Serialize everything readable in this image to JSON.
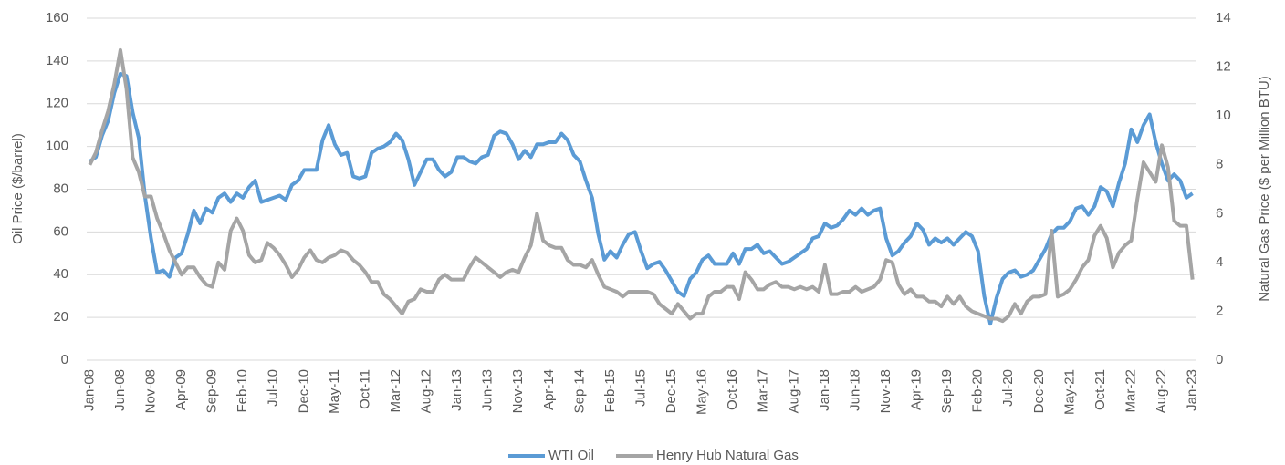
{
  "chart_data": {
    "type": "line",
    "y_label": "Oil Price ($/barrel)",
    "y2_label": "Natural Gas Price ($ per Million BTU)",
    "ylim": [
      0,
      160
    ],
    "yticks": [
      0,
      20,
      40,
      60,
      80,
      100,
      120,
      140,
      160
    ],
    "y2lim": [
      0,
      14
    ],
    "y2ticks": [
      0,
      2,
      4,
      6,
      8,
      10,
      12,
      14
    ],
    "grid": true,
    "legend": "bottom",
    "categories": [
      "Jan-08",
      null,
      null,
      null,
      null,
      "Jun-08",
      null,
      null,
      null,
      null,
      "Nov-08",
      null,
      null,
      null,
      null,
      "Apr-09",
      null,
      null,
      null,
      null,
      "Sep-09",
      null,
      null,
      null,
      null,
      "Feb-10",
      null,
      null,
      null,
      null,
      "Jul-10",
      null,
      null,
      null,
      null,
      "Dec-10",
      null,
      null,
      null,
      null,
      "May-11",
      null,
      null,
      null,
      null,
      "Oct-11",
      null,
      null,
      null,
      null,
      "Mar-12",
      null,
      null,
      null,
      null,
      "Aug-12",
      null,
      null,
      null,
      null,
      "Jan-13",
      null,
      null,
      null,
      null,
      "Jun-13",
      null,
      null,
      null,
      null,
      "Nov-13",
      null,
      null,
      null,
      null,
      "Apr-14",
      null,
      null,
      null,
      null,
      "Sep-14",
      null,
      null,
      null,
      null,
      "Feb-15",
      null,
      null,
      null,
      null,
      "Jul-15",
      null,
      null,
      null,
      null,
      "Dec-15",
      null,
      null,
      null,
      null,
      "May-16",
      null,
      null,
      null,
      null,
      "Oct-16",
      null,
      null,
      null,
      null,
      "Mar-17",
      null,
      null,
      null,
      null,
      "Aug-17",
      null,
      null,
      null,
      null,
      "Jan-18",
      null,
      null,
      null,
      null,
      "Jun-18",
      null,
      null,
      null,
      null,
      "Nov-18",
      null,
      null,
      null,
      null,
      "Apr-19",
      null,
      null,
      null,
      null,
      "Sep-19",
      null,
      null,
      null,
      null,
      "Feb-20",
      null,
      null,
      null,
      null,
      "Jul-20",
      null,
      null,
      null,
      null,
      "Dec-20",
      null,
      null,
      null,
      null,
      "May-21",
      null,
      null,
      null,
      null,
      "Oct-21",
      null,
      null,
      null,
      null,
      "Mar-22",
      null,
      null,
      null,
      null,
      "Aug-22",
      null,
      null,
      null,
      null,
      "Jan-23"
    ],
    "series": [
      {
        "name": "WTI Oil",
        "color": "#5b9bd5",
        "axis": "y",
        "values": [
          93,
          95,
          105,
          112,
          125,
          134,
          133,
          116,
          104,
          77,
          57,
          41,
          42,
          39,
          48,
          50,
          59,
          70,
          64,
          71,
          69,
          76,
          78,
          74,
          78,
          76,
          81,
          84,
          74,
          75,
          76,
          77,
          75,
          82,
          84,
          89,
          89,
          89,
          103,
          110,
          101,
          96,
          97,
          86,
          85,
          86,
          97,
          99,
          100,
          102,
          106,
          103,
          94,
          82,
          88,
          94,
          94,
          89,
          86,
          88,
          95,
          95,
          93,
          92,
          95,
          96,
          105,
          107,
          106,
          101,
          94,
          98,
          95,
          101,
          101,
          102,
          102,
          106,
          103,
          96,
          93,
          84,
          76,
          59,
          47,
          51,
          48,
          54,
          59,
          60,
          51,
          43,
          45,
          46,
          42,
          37,
          32,
          30,
          38,
          41,
          47,
          49,
          45,
          45,
          45,
          50,
          45,
          52,
          52,
          54,
          50,
          51,
          48,
          45,
          46,
          48,
          50,
          52,
          57,
          58,
          64,
          62,
          63,
          66,
          70,
          68,
          71,
          68,
          70,
          71,
          57,
          49,
          51,
          55,
          58,
          64,
          61,
          54,
          57,
          55,
          57,
          54,
          57,
          60,
          58,
          51,
          30,
          17,
          29,
          38,
          41,
          42,
          39,
          40,
          42,
          47,
          52,
          59,
          62,
          62,
          65,
          71,
          72,
          68,
          72,
          81,
          79,
          72,
          83,
          92,
          108,
          102,
          110,
          115,
          102,
          92,
          84,
          87,
          84,
          76,
          78
        ]
      },
      {
        "name": "Henry Hub Natural Gas",
        "color": "#a5a5a5",
        "axis": "y2",
        "values": [
          8.0,
          8.5,
          9.4,
          10.2,
          11.3,
          12.7,
          11.1,
          8.3,
          7.7,
          6.7,
          6.7,
          5.8,
          5.2,
          4.5,
          4.0,
          3.5,
          3.8,
          3.8,
          3.4,
          3.1,
          3.0,
          4.0,
          3.7,
          5.3,
          5.8,
          5.3,
          4.3,
          4.0,
          4.1,
          4.8,
          4.6,
          4.3,
          3.9,
          3.4,
          3.7,
          4.2,
          4.5,
          4.1,
          4.0,
          4.2,
          4.3,
          4.5,
          4.4,
          4.1,
          3.9,
          3.6,
          3.2,
          3.2,
          2.7,
          2.5,
          2.2,
          1.9,
          2.4,
          2.5,
          2.9,
          2.8,
          2.8,
          3.3,
          3.5,
          3.3,
          3.3,
          3.3,
          3.8,
          4.2,
          4.0,
          3.8,
          3.6,
          3.4,
          3.6,
          3.7,
          3.6,
          4.2,
          4.7,
          6.0,
          4.9,
          4.7,
          4.6,
          4.6,
          4.1,
          3.9,
          3.9,
          3.8,
          4.1,
          3.5,
          3.0,
          2.9,
          2.8,
          2.6,
          2.8,
          2.8,
          2.8,
          2.8,
          2.7,
          2.3,
          2.1,
          1.9,
          2.3,
          2.0,
          1.7,
          1.9,
          1.9,
          2.6,
          2.8,
          2.8,
          3.0,
          3.0,
          2.5,
          3.6,
          3.3,
          2.9,
          2.9,
          3.1,
          3.2,
          3.0,
          3.0,
          2.9,
          3.0,
          2.9,
          3.0,
          2.8,
          3.9,
          2.7,
          2.7,
          2.8,
          2.8,
          3.0,
          2.8,
          2.9,
          3.0,
          3.3,
          4.1,
          4.0,
          3.1,
          2.7,
          2.9,
          2.6,
          2.6,
          2.4,
          2.4,
          2.2,
          2.6,
          2.3,
          2.6,
          2.2,
          2.0,
          1.9,
          1.8,
          1.7,
          1.7,
          1.6,
          1.8,
          2.3,
          1.9,
          2.4,
          2.6,
          2.6,
          2.7,
          5.3,
          2.6,
          2.7,
          2.9,
          3.3,
          3.8,
          4.1,
          5.1,
          5.5,
          5.0,
          3.8,
          4.4,
          4.7,
          4.9,
          6.6,
          8.1,
          7.7,
          7.3,
          8.8,
          7.9,
          5.7,
          5.5,
          5.5,
          3.3
        ]
      }
    ]
  }
}
